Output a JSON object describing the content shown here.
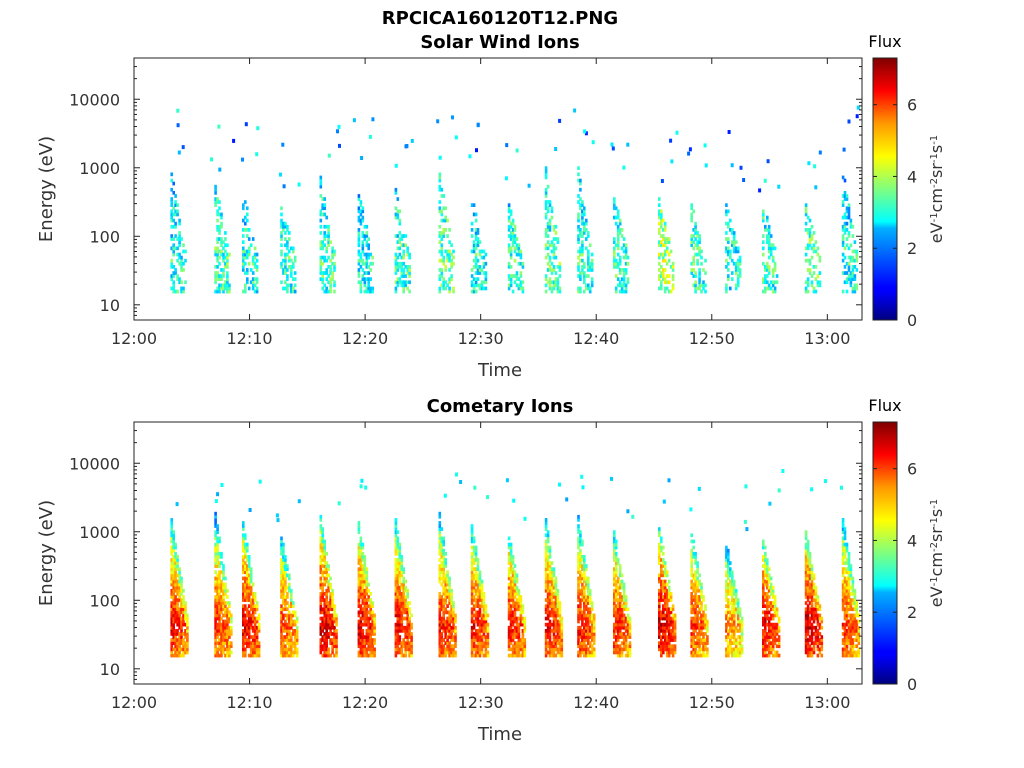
{
  "figure": {
    "title": "RPCICA160120T12.PNG"
  },
  "panels": [
    {
      "title": "Solar Wind Ions",
      "xlabel": "Time",
      "ylabel": "Energy (eV)",
      "colorbar": {
        "title": "Flux",
        "ticks": [
          "0",
          "2",
          "4",
          "6"
        ],
        "tick_values": [
          0,
          2,
          4,
          6
        ],
        "range": [
          0,
          7.3
        ],
        "colormap": "jet",
        "unit_html": "eV<tspan baseline-shift=\"super\" font-size=\"10\">-1</tspan>cm<tspan baseline-shift=\"super\" font-size=\"10\">-2</tspan>sr<tspan baseline-shift=\"super\" font-size=\"10\">-1</tspan>s<tspan baseline-shift=\"super\" font-size=\"10\">-1</tspan>"
      }
    },
    {
      "title": "Cometary Ions",
      "xlabel": "Time",
      "ylabel": "Energy (eV)",
      "colorbar": {
        "title": "Flux",
        "ticks": [
          "0",
          "2",
          "4",
          "6"
        ],
        "tick_values": [
          0,
          2,
          4,
          6
        ],
        "range": [
          0,
          7.3
        ],
        "colormap": "jet",
        "unit_html": "eV<tspan baseline-shift=\"super\" font-size=\"10\">-1</tspan>cm<tspan baseline-shift=\"super\" font-size=\"10\">-2</tspan>sr<tspan baseline-shift=\"super\" font-size=\"10\">-1</tspan>s<tspan baseline-shift=\"super\" font-size=\"10\">-1</tspan>"
      }
    }
  ],
  "chart_data": [
    {
      "type": "heatmap",
      "title": "Solar Wind Ions",
      "xlabel": "Time",
      "ylabel": "Energy (eV)",
      "x_ticks": [
        "12:00",
        "12:10",
        "12:20",
        "12:30",
        "12:40",
        "12:50",
        "13:00"
      ],
      "x_tick_minutes": [
        0,
        10,
        20,
        30,
        40,
        50,
        60
      ],
      "xlim_minutes": [
        0,
        63
      ],
      "y_ticks": [
        "10",
        "100",
        "1000",
        "10000"
      ],
      "y_tick_values": [
        10,
        100,
        1000,
        10000
      ],
      "ylim": [
        6,
        40000
      ],
      "y_scale": "log",
      "colorbar_range": [
        0,
        7.3
      ],
      "bursts": [
        {
          "t": 3.4,
          "emax": 900,
          "peak": 3.0
        },
        {
          "t": 7.2,
          "emax": 600,
          "peak": 3.3
        },
        {
          "t": 9.6,
          "emax": 500,
          "peak": 3.0
        },
        {
          "t": 12.9,
          "emax": 300,
          "peak": 3.1
        },
        {
          "t": 16.3,
          "emax": 800,
          "peak": 3.3
        },
        {
          "t": 19.6,
          "emax": 500,
          "peak": 3.0
        },
        {
          "t": 22.8,
          "emax": 500,
          "peak": 3.3
        },
        {
          "t": 26.6,
          "emax": 800,
          "peak": 3.5
        },
        {
          "t": 29.4,
          "emax": 400,
          "peak": 3.0
        },
        {
          "t": 32.6,
          "emax": 300,
          "peak": 3.2
        },
        {
          "t": 35.8,
          "emax": 1000,
          "peak": 3.4
        },
        {
          "t": 38.6,
          "emax": 1000,
          "peak": 3.2
        },
        {
          "t": 41.7,
          "emax": 400,
          "peak": 3.2
        },
        {
          "t": 45.6,
          "emax": 350,
          "peak": 4.0
        },
        {
          "t": 48.4,
          "emax": 300,
          "peak": 3.2
        },
        {
          "t": 51.4,
          "emax": 300,
          "peak": 3.0
        },
        {
          "t": 54.6,
          "emax": 300,
          "peak": 3.2
        },
        {
          "t": 58.3,
          "emax": 300,
          "peak": 3.5
        },
        {
          "t": 61.5,
          "emax": 1000,
          "peak": 3.0
        }
      ]
    },
    {
      "type": "heatmap",
      "title": "Cometary Ions",
      "xlabel": "Time",
      "ylabel": "Energy (eV)",
      "x_ticks": [
        "12:00",
        "12:10",
        "12:20",
        "12:30",
        "12:40",
        "12:50",
        "13:00"
      ],
      "x_tick_minutes": [
        0,
        10,
        20,
        30,
        40,
        50,
        60
      ],
      "xlim_minutes": [
        0,
        63
      ],
      "y_ticks": [
        "10",
        "100",
        "1000",
        "10000"
      ],
      "y_tick_values": [
        10,
        100,
        1000,
        10000
      ],
      "ylim": [
        6,
        40000
      ],
      "y_scale": "log",
      "colorbar_range": [
        0,
        7.3
      ],
      "bursts": [
        {
          "t": 3.4,
          "emax": 1500,
          "peak": 6.4
        },
        {
          "t": 7.2,
          "emax": 1800,
          "peak": 6.2
        },
        {
          "t": 9.6,
          "emax": 1400,
          "peak": 6.6
        },
        {
          "t": 12.9,
          "emax": 900,
          "peak": 6.0
        },
        {
          "t": 16.3,
          "emax": 1700,
          "peak": 6.8
        },
        {
          "t": 19.6,
          "emax": 1400,
          "peak": 6.6
        },
        {
          "t": 22.8,
          "emax": 1500,
          "peak": 6.5
        },
        {
          "t": 26.6,
          "emax": 1800,
          "peak": 6.4
        },
        {
          "t": 29.4,
          "emax": 1200,
          "peak": 6.4
        },
        {
          "t": 32.6,
          "emax": 900,
          "peak": 6.4
        },
        {
          "t": 35.8,
          "emax": 1500,
          "peak": 6.5
        },
        {
          "t": 38.6,
          "emax": 1600,
          "peak": 6.4
        },
        {
          "t": 41.7,
          "emax": 1000,
          "peak": 6.3
        },
        {
          "t": 45.6,
          "emax": 1200,
          "peak": 6.8
        },
        {
          "t": 48.4,
          "emax": 1000,
          "peak": 6.2
        },
        {
          "t": 51.4,
          "emax": 700,
          "peak": 5.6
        },
        {
          "t": 54.6,
          "emax": 800,
          "peak": 6.5
        },
        {
          "t": 58.3,
          "emax": 1000,
          "peak": 6.8
        },
        {
          "t": 61.5,
          "emax": 1600,
          "peak": 6.2
        }
      ]
    }
  ]
}
